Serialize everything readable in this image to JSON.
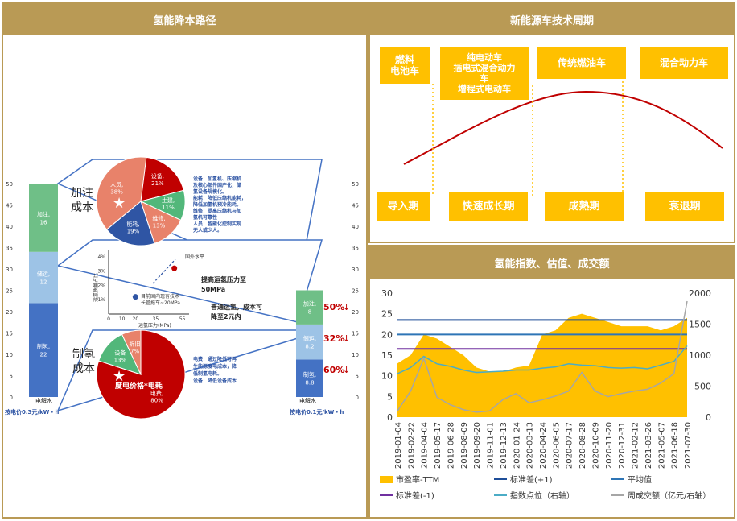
{
  "panels": {
    "left_title": "氢能降本路径",
    "tech_title": "新能源车技术周期",
    "index_title": "氢能指数、估值、成交额"
  },
  "tech_cycle": {
    "tech_boxes": [
      {
        "lines": [
          "燃料",
          "电池车"
        ]
      },
      {
        "lines": [
          "纯电动车",
          "插电式混合动力",
          "车",
          "增程式电动车"
        ]
      },
      {
        "lines": [
          "传统燃油车"
        ]
      },
      {
        "lines": [
          "混合动力车"
        ]
      }
    ],
    "stages": [
      "导入期",
      "快速成长期",
      "成熟期",
      "衰退期"
    ],
    "colors": {
      "box": "#ffc000",
      "curve": "#c00000"
    }
  },
  "left_chart": {
    "y_ticks": [
      "0",
      "5",
      "10",
      "15",
      "20",
      "25",
      "30",
      "35",
      "40",
      "45",
      "50"
    ],
    "left_bar": {
      "segments": [
        {
          "label": "制氢,",
          "value": "22"
        },
        {
          "label": "储运,",
          "value": "12"
        },
        {
          "label": "加注,",
          "value": "16"
        }
      ],
      "xlabel": "电解水",
      "price": "按电价0.3元/kW・h"
    },
    "right_bar": {
      "segments": [
        {
          "label": "制氢,",
          "value": "8.8"
        },
        {
          "label": "储运,",
          "value": "8.2"
        },
        {
          "label": "加注,",
          "value": "8"
        }
      ],
      "xlabel": "电解水",
      "price": "按电价0.1元/kW・h"
    },
    "reductions": [
      "50%",
      "32%",
      "60%"
    ],
    "refuel_title": [
      "加注",
      "成本"
    ],
    "produce_title": [
      "制氢",
      "成本"
    ],
    "refuel_pie": [
      {
        "label": "设备,",
        "value": "21%",
        "color": "#c00000"
      },
      {
        "label": "土建,",
        "value": "11%",
        "color": "#52b77a"
      },
      {
        "label": "维修,",
        "value": "13%",
        "color": "#e8826a"
      },
      {
        "label": "能耗,",
        "value": "19%",
        "color": "#2f55a4"
      },
      {
        "label": "人员,",
        "value": "38%",
        "color": "#e8826a"
      }
    ],
    "refuel_notes": [
      "设备：加氢机、压缩机",
      "及核心部件国产化，储",
      "氢设备规模化。",
      "能耗：降低压缩机能耗，",
      "降低加氢机预冷能耗。",
      "维修：提高压缩机与加",
      "氢机可靠性",
      "人员：智能化控制实现",
      "无人或少人。"
    ],
    "transport_chart": {
      "y_ticks": [
        "1%",
        "2%",
        "3%",
        "4%"
      ],
      "x_ticks": [
        "0",
        "10",
        "20",
        "35",
        "55"
      ],
      "xlabel": "运氢压力(MPa)",
      "ylabel": "运氢质量占比",
      "points": [
        {
          "x": 20,
          "y": 1.2
        },
        {
          "x": 55,
          "y": 3.2
        }
      ],
      "domestic_label": [
        "目前国内现有技术",
        "长管拖车~20MPa"
      ],
      "foreign_label": "国外水平",
      "note1": [
        "提高运氢压力至",
        "50MPa"
      ],
      "note2": [
        "普通运氢，成本可",
        "降至2元内"
      ]
    },
    "produce_pie": [
      {
        "label": "电费,",
        "value": "80%",
        "color": "#c00000"
      },
      {
        "label": "设备",
        "value": "13%",
        "color": "#52b77a"
      },
      {
        "label": "折旧",
        "value": "7%",
        "color": "#e8826a"
      }
    ],
    "produce_pie_label": "度电价格*电耗",
    "produce_notes": [
      "电费：通过降低可再",
      "生能源度电成本，降",
      "低制氢电耗。",
      "设备：降低设备成本"
    ]
  },
  "chart_data": {
    "type": "line",
    "title": "",
    "x": [
      "2019-01-04",
      "2019-02-22",
      "2019-04-04",
      "2019-05-17",
      "2019-06-28",
      "2019-08-09",
      "2019-09-20",
      "2019-11-01",
      "2019-12-13",
      "2020-01-24",
      "2020-03-13",
      "2020-04-24",
      "2020-06-05",
      "2020-07-17",
      "2020-08-28",
      "2020-10-09",
      "2020-11-20",
      "2020-12-31",
      "2021-02-12",
      "2021-03-26",
      "2021-05-07",
      "2021-06-18",
      "2021-07-30"
    ],
    "y_left": {
      "ticks": [
        0,
        5,
        10,
        15,
        20,
        25,
        30
      ],
      "range": [
        0,
        30
      ]
    },
    "y_right": {
      "ticks": [
        0,
        500,
        1000,
        1500,
        2000
      ],
      "range": [
        0,
        2000
      ]
    },
    "series": [
      {
        "name": "市盈率-TTM",
        "axis": "left",
        "type": "area",
        "color": "#ffc000",
        "values": [
          13,
          15,
          20,
          19,
          17,
          15,
          12,
          11,
          11,
          12,
          12.5,
          20,
          21,
          24,
          25,
          24,
          23,
          22,
          22,
          22,
          21,
          22,
          24
        ]
      },
      {
        "name": "标准差(+1)",
        "axis": "left",
        "type": "hline",
        "color": "#1f4e99",
        "value": 23.5
      },
      {
        "name": "平均值",
        "axis": "left",
        "type": "hline",
        "color": "#2e75b6",
        "value": 20
      },
      {
        "name": "标准差(-1)",
        "axis": "left",
        "type": "hline",
        "color": "#7030a0",
        "value": 16.5
      },
      {
        "name": "指数点位（右轴）",
        "axis": "right",
        "type": "line",
        "color": "#4bacc6",
        "values": [
          700,
          800,
          980,
          860,
          820,
          760,
          720,
          730,
          740,
          760,
          760,
          790,
          810,
          860,
          840,
          830,
          800,
          790,
          800,
          780,
          840,
          900,
          1150
        ]
      },
      {
        "name": "周成交额（亿元/右轴）",
        "axis": "right",
        "type": "line",
        "color": "#a6a6a6",
        "values": [
          100,
          420,
          950,
          320,
          200,
          120,
          80,
          100,
          280,
          380,
          230,
          280,
          340,
          420,
          720,
          420,
          330,
          380,
          420,
          450,
          550,
          700,
          1870
        ]
      }
    ],
    "legend_position": "bottom"
  }
}
